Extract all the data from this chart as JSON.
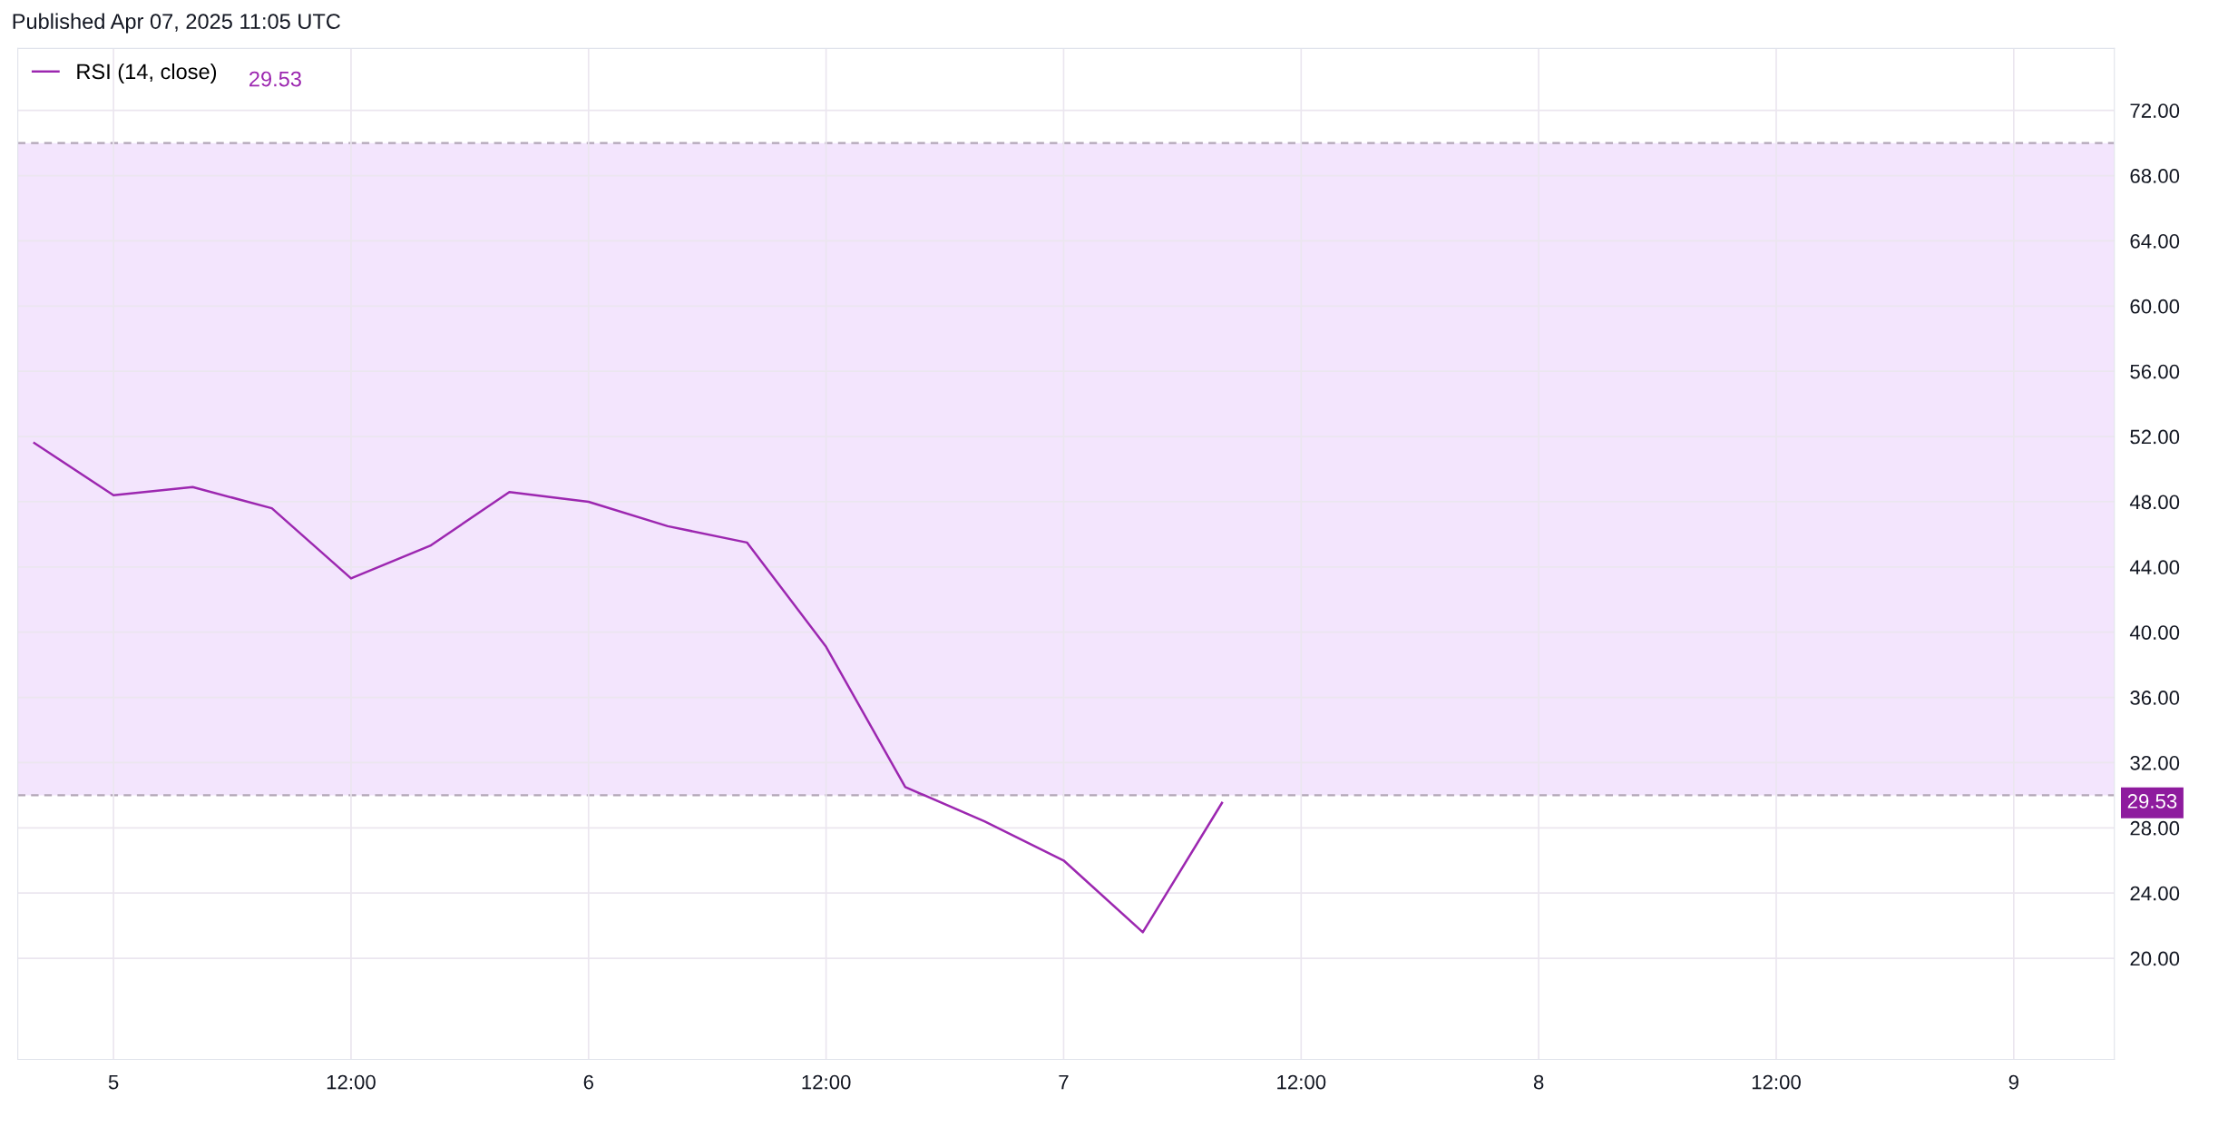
{
  "chart_data": {
    "type": "line",
    "title": "Published Apr 07, 2025 11:05 UTC",
    "x": [
      "2025-04-04T20:00",
      "2025-04-05T00:00",
      "2025-04-05T04:00",
      "2025-04-05T08:00",
      "2025-04-05T12:00",
      "2025-04-05T16:00",
      "2025-04-05T20:00",
      "2025-04-06T00:00",
      "2025-04-06T04:00",
      "2025-04-06T08:00",
      "2025-04-06T12:00",
      "2025-04-06T16:00",
      "2025-04-06T20:00",
      "2025-04-07T00:00",
      "2025-04-07T04:00",
      "2025-04-07T08:00"
    ],
    "series": [
      {
        "name": "RSI (14, close)",
        "color": "#9c27b0",
        "values": [
          51.6,
          48.4,
          48.9,
          47.6,
          43.3,
          45.3,
          48.6,
          48.0,
          46.5,
          45.5,
          39.1,
          30.5,
          28.4,
          26.0,
          21.6,
          29.53
        ]
      }
    ],
    "xlim": [
      "2025-04-04T19:10",
      "2025-04-09T05:05"
    ],
    "xticks": [
      {
        "value": "2025-04-05T00:00",
        "label": "5"
      },
      {
        "value": "2025-04-05T12:00",
        "label": "12:00"
      },
      {
        "value": "2025-04-06T00:00",
        "label": "6"
      },
      {
        "value": "2025-04-06T12:00",
        "label": "12:00"
      },
      {
        "value": "2025-04-07T00:00",
        "label": "7"
      },
      {
        "value": "2025-04-07T12:00",
        "label": "12:00"
      },
      {
        "value": "2025-04-08T00:00",
        "label": "8"
      },
      {
        "value": "2025-04-08T12:00",
        "label": "12:00"
      },
      {
        "value": "2025-04-09T00:00",
        "label": "9"
      }
    ],
    "ylim": [
      13.8,
      75.8
    ],
    "yticks": [
      {
        "value": 20,
        "label": "20.00"
      },
      {
        "value": 24,
        "label": "24.00"
      },
      {
        "value": 28,
        "label": "28.00"
      },
      {
        "value": 32,
        "label": "32.00"
      },
      {
        "value": 36,
        "label": "36.00"
      },
      {
        "value": 40,
        "label": "40.00"
      },
      {
        "value": 44,
        "label": "44.00"
      },
      {
        "value": 48,
        "label": "48.00"
      },
      {
        "value": 52,
        "label": "52.00"
      },
      {
        "value": 56,
        "label": "56.00"
      },
      {
        "value": 60,
        "label": "60.00"
      },
      {
        "value": 64,
        "label": "64.00"
      },
      {
        "value": 68,
        "label": "68.00"
      },
      {
        "value": 72,
        "label": "72.00"
      }
    ],
    "bands": [
      {
        "axis": "y",
        "from": 30,
        "to": 70,
        "color": "#f3e5fd"
      }
    ],
    "ref_lines": [
      {
        "axis": "y",
        "value": 70,
        "color": "#b2a6b6",
        "line_style": "dashed"
      },
      {
        "axis": "y",
        "value": 30,
        "color": "#b2a6b6",
        "line_style": "dashed"
      }
    ],
    "annotations": [
      "29.53",
      "29.53"
    ],
    "grid": true,
    "legend": "top left",
    "marker": "none",
    "line_style": "solid"
  }
}
